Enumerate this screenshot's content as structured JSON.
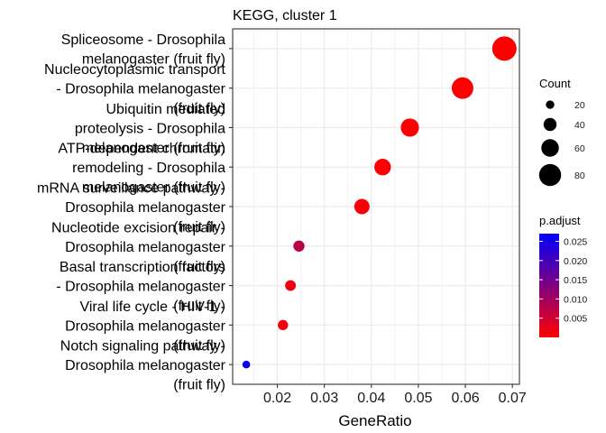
{
  "chart_data": {
    "type": "scatter",
    "title": "KEGG, cluster 1",
    "xlabel": "GeneRatio",
    "ylabel": "",
    "xlim": [
      0.0105,
      0.0715
    ],
    "x_ticks": [
      "0.02",
      "0.03",
      "0.04",
      "0.05",
      "0.06",
      "0.07"
    ],
    "grid": true,
    "legend_position": "right",
    "points": [
      {
        "label": [
          "Spliceosome - Drosophila",
          "melanogaster (fruit fly)"
        ],
        "x": 0.0683,
        "count": 90,
        "p_adjust": 0.0
      },
      {
        "label": [
          "Nucleocytoplasmic transport",
          "- Drosophila melanogaster",
          "(fruit fly)"
        ],
        "x": 0.0594,
        "count": 78,
        "p_adjust": 0.0
      },
      {
        "label": [
          "Ubiquitin mediated",
          "proteolysis - Drosophila",
          "melanogaster (fruit fly)"
        ],
        "x": 0.0482,
        "count": 63,
        "p_adjust": 0.0
      },
      {
        "label": [
          "ATP-dependent chromatin",
          "remodeling - Drosophila",
          "melanogaster (fruit fly)"
        ],
        "x": 0.0424,
        "count": 56,
        "p_adjust": 0.0003
      },
      {
        "label": [
          "mRNA surveillance pathway -",
          "Drosophila melanogaster",
          "(fruit fly)"
        ],
        "x": 0.038,
        "count": 50,
        "p_adjust": 0.0005
      },
      {
        "label": [
          "Nucleotide excision repair -",
          "Drosophila melanogaster",
          "(fruit fly)"
        ],
        "x": 0.0246,
        "count": 32,
        "p_adjust": 0.0075
      },
      {
        "label": [
          "Basal transcription factors",
          "- Drosophila melanogaster",
          "(fruit fly)"
        ],
        "x": 0.0228,
        "count": 30,
        "p_adjust": 0.0015
      },
      {
        "label": [
          "Viral life cycle - HIV-1 -",
          "Drosophila melanogaster",
          "(fruit fly)"
        ],
        "x": 0.0212,
        "count": 28,
        "p_adjust": 0.0012
      },
      {
        "label": [
          "Notch signaling pathway -",
          "Drosophila melanogaster",
          "(fruit fly)"
        ],
        "x": 0.0134,
        "count": 17,
        "p_adjust": 0.0258
      }
    ],
    "size_legend": {
      "title": "Count",
      "values": [
        20,
        40,
        60,
        80
      ]
    },
    "color_legend": {
      "title": "p.adjust",
      "range": [
        0.0,
        0.027
      ],
      "ticks": [
        "0.025",
        "0.020",
        "0.015",
        "0.010",
        "0.005"
      ],
      "low_color": "#ff0000",
      "high_color": "#0000ff"
    },
    "colors": {
      "panel_background": "#ffffff",
      "grid_color": "#ebebeb",
      "panel_border": "#333333"
    }
  }
}
